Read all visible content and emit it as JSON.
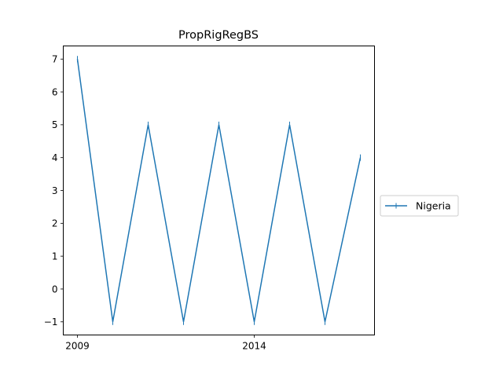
{
  "chart_data": {
    "type": "line",
    "title": "PropRigRegBS",
    "xlabel": "",
    "ylabel": "",
    "x": [
      2009,
      2010,
      2011,
      2012,
      2013,
      2014,
      2015,
      2016,
      2017
    ],
    "series": [
      {
        "name": "Nigeria",
        "values": [
          7,
          -1,
          5,
          -1,
          5,
          -1,
          5,
          -1,
          4
        ],
        "color": "#1f77b4"
      }
    ],
    "xlim": [
      2008.6,
      2017.4
    ],
    "ylim": [
      -1.4,
      7.4
    ],
    "xticks": [
      2009,
      2014
    ],
    "xtick_labels": [
      "2009",
      "2014"
    ],
    "yticks": [
      -1,
      0,
      1,
      2,
      3,
      4,
      5,
      6,
      7
    ],
    "ytick_labels": [
      "−1",
      "0",
      "1",
      "2",
      "3",
      "4",
      "5",
      "6",
      "7"
    ],
    "grid": false,
    "legend_position": "center-right-outside"
  }
}
